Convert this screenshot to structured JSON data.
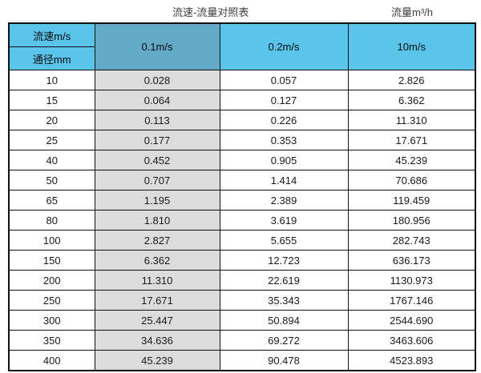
{
  "chart_data": {
    "type": "table",
    "title": "流速-流量对照表",
    "unit_label": "流量m³/h",
    "corner": {
      "top": "流速m/s",
      "bottom": "通径mm"
    },
    "columns": [
      "0.1m/s",
      "0.2m/s",
      "10m/s"
    ],
    "highlighted_column": "0.1m/s",
    "rows": [
      {
        "diameter": "10",
        "values": [
          "0.028",
          "0.057",
          "2.826"
        ]
      },
      {
        "diameter": "15",
        "values": [
          "0.064",
          "0.127",
          "6.362"
        ]
      },
      {
        "diameter": "20",
        "values": [
          "0.113",
          "0.226",
          "11.310"
        ]
      },
      {
        "diameter": "25",
        "values": [
          "0.177",
          "0.353",
          "17.671"
        ]
      },
      {
        "diameter": "40",
        "values": [
          "0.452",
          "0.905",
          "45.239"
        ]
      },
      {
        "diameter": "50",
        "values": [
          "0.707",
          "1.414",
          "70.686"
        ]
      },
      {
        "diameter": "65",
        "values": [
          "1.195",
          "2.389",
          "119.459"
        ]
      },
      {
        "diameter": "80",
        "values": [
          "1.810",
          "3.619",
          "180.956"
        ]
      },
      {
        "diameter": "100",
        "values": [
          "2.827",
          "5.655",
          "282.743"
        ]
      },
      {
        "diameter": "150",
        "values": [
          "6.362",
          "12.723",
          "636.173"
        ]
      },
      {
        "diameter": "200",
        "values": [
          "11.310",
          "22.619",
          "1130.973"
        ]
      },
      {
        "diameter": "250",
        "values": [
          "17.671",
          "35.343",
          "1767.146"
        ]
      },
      {
        "diameter": "300",
        "values": [
          "25.447",
          "50.894",
          "2544.690"
        ]
      },
      {
        "diameter": "350",
        "values": [
          "34.636",
          "69.272",
          "3463.606"
        ]
      },
      {
        "diameter": "400",
        "values": [
          "45.239",
          "90.478",
          "4523.893"
        ]
      }
    ]
  },
  "colors": {
    "header_blue": "#5BC4EA",
    "highlight_header_blue": "#63A9C8",
    "highlight_column_gray": "#DCDCDC",
    "border": "#111111"
  }
}
